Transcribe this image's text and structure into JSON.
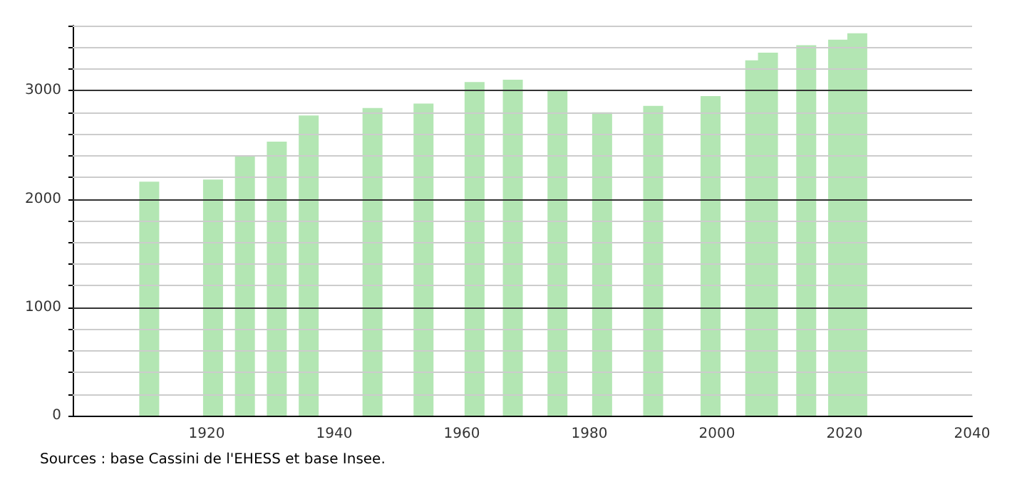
{
  "chart_data": {
    "type": "bar",
    "x": [
      1911,
      1921,
      1926,
      1931,
      1936,
      1946,
      1954,
      1962,
      1968,
      1975,
      1982,
      1990,
      1999,
      2006,
      2008,
      2014,
      2019,
      2022
    ],
    "values": [
      2160,
      2180,
      2400,
      2530,
      2770,
      2840,
      2880,
      3080,
      3100,
      3000,
      2800,
      2860,
      2950,
      3280,
      3350,
      3420,
      3470,
      3530
    ],
    "color": "#b3e6b3",
    "xlim": [
      1899,
      2040
    ],
    "xticks": [
      1920,
      1940,
      1960,
      1980,
      2000,
      2020,
      2040
    ],
    "ylim": [
      0,
      3600
    ],
    "yticks": [
      0,
      {
        "value": 200,
        "label": null
      },
      {
        "value": 400,
        "label": null
      },
      {
        "value": 600,
        "label": null
      },
      {
        "value": 800,
        "label": null
      },
      1000,
      {
        "value": 1200,
        "label": null
      },
      {
        "value": 1400,
        "label": null
      },
      {
        "value": 1600,
        "label": null
      },
      {
        "value": 1800,
        "label": null
      },
      2000,
      {
        "value": 2200,
        "label": null
      },
      {
        "value": 2400,
        "label": null
      },
      {
        "value": 2600,
        "label": null
      },
      {
        "value": 2800,
        "label": null
      },
      3000,
      {
        "value": 3200,
        "label": null
      },
      {
        "value": 3400,
        "label": null
      },
      {
        "value": 3600,
        "label": null
      }
    ],
    "grid": "y",
    "annotations": [
      "Sources : base Cassini de l'EHESS et base Insee."
    ]
  }
}
